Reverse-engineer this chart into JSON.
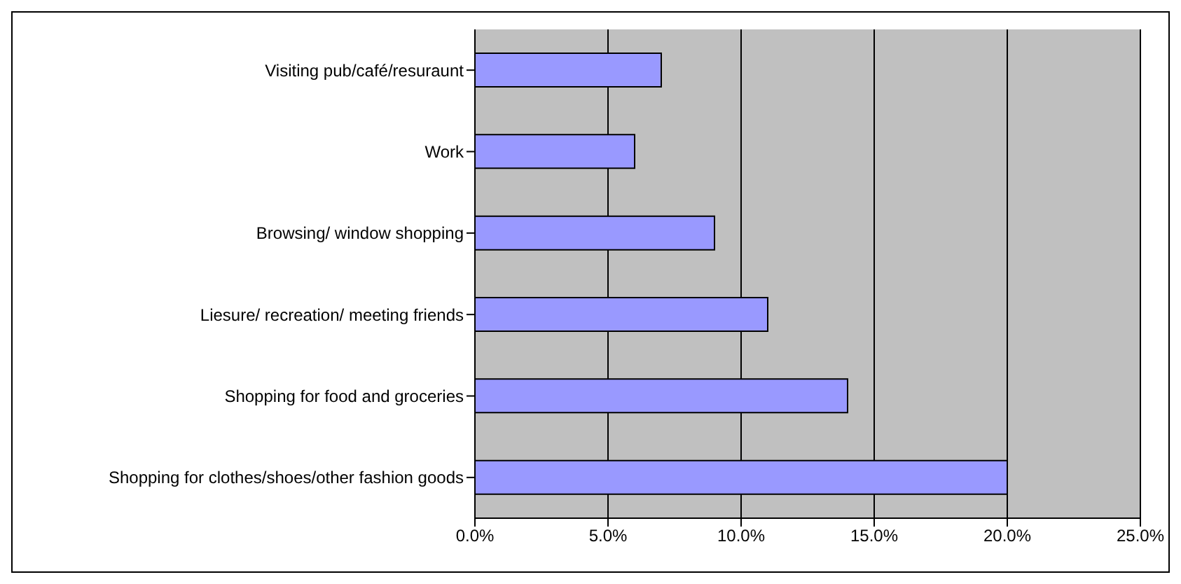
{
  "chart_data": {
    "type": "bar",
    "orientation": "horizontal",
    "categories": [
      "Visiting pub/café/resuraunt",
      "Work",
      "Browsing/ window shopping",
      "Liesure/ recreation/ meeting friends",
      "Shopping for food and groceries",
      "Shopping for clothes/shoes/other fashion goods"
    ],
    "values": [
      7,
      6,
      9,
      11,
      14,
      20
    ],
    "color": "#9999ff",
    "xlim": [
      0,
      25
    ],
    "xticks": [
      {
        "value": 0,
        "label": "0.0%"
      },
      {
        "value": 5,
        "label": "5.0%"
      },
      {
        "value": 10,
        "label": "10.0%"
      },
      {
        "value": 15,
        "label": "15.0%"
      },
      {
        "value": 20,
        "label": "20.0%"
      },
      {
        "value": 25,
        "label": "25.0%"
      }
    ],
    "grid": "x"
  }
}
